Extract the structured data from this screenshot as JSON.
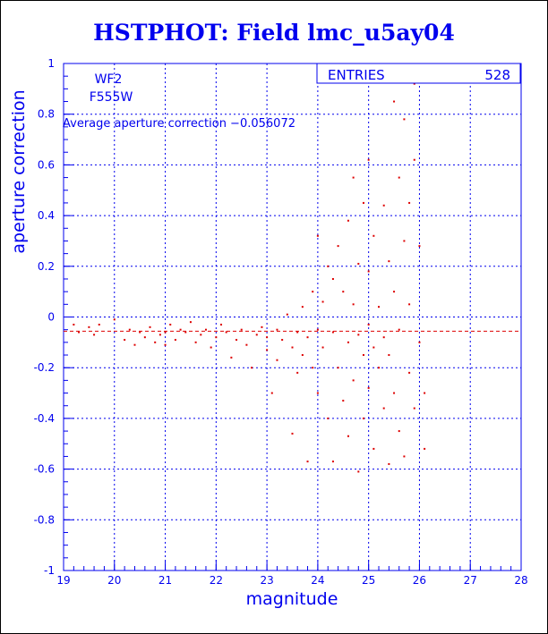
{
  "chart_data": {
    "type": "scatter",
    "title": "HSTPHOT: Field lmc_u5ay04",
    "xlabel": "magnitude",
    "ylabel": "aperture correction",
    "xlim": [
      19,
      28
    ],
    "ylim": [
      -1,
      1
    ],
    "xticks": [
      "19",
      "20",
      "21",
      "22",
      "23",
      "24",
      "25",
      "26",
      "27",
      "28"
    ],
    "yticks": [
      "-1",
      "-0.8",
      "-0.6",
      "-0.4",
      "-0.2",
      "0",
      "0.2",
      "0.4",
      "0.6",
      "0.8",
      "1"
    ],
    "grid": "dashed",
    "annotations": {
      "chip": "WF2",
      "filter": "F555W",
      "average_text": "Average aperture correction −0.056072"
    },
    "stats": {
      "entries_label": "ENTRIES",
      "entries_value": "528"
    },
    "average_line": -0.056,
    "point_color": "#dd0000",
    "axis_color": "#0000ee",
    "points": [
      [
        19.2,
        -0.03
      ],
      [
        19.3,
        -0.06
      ],
      [
        19.5,
        -0.04
      ],
      [
        19.6,
        -0.07
      ],
      [
        19.7,
        -0.03
      ],
      [
        20.0,
        -0.01
      ],
      [
        20.2,
        -0.09
      ],
      [
        20.3,
        -0.05
      ],
      [
        20.4,
        -0.11
      ],
      [
        20.5,
        -0.06
      ],
      [
        20.6,
        -0.08
      ],
      [
        20.7,
        -0.04
      ],
      [
        20.8,
        -0.1
      ],
      [
        20.9,
        -0.07
      ],
      [
        21.0,
        -0.06
      ],
      [
        21.0,
        -0.11
      ],
      [
        21.1,
        -0.03
      ],
      [
        21.2,
        -0.09
      ],
      [
        21.3,
        -0.05
      ],
      [
        21.4,
        -0.06
      ],
      [
        21.5,
        -0.02
      ],
      [
        21.6,
        -0.1
      ],
      [
        21.7,
        -0.07
      ],
      [
        21.8,
        -0.05
      ],
      [
        21.9,
        -0.12
      ],
      [
        22.0,
        -0.08
      ],
      [
        22.1,
        -0.03
      ],
      [
        22.2,
        -0.06
      ],
      [
        22.3,
        -0.16
      ],
      [
        22.4,
        -0.09
      ],
      [
        22.5,
        -0.05
      ],
      [
        22.6,
        -0.11
      ],
      [
        22.7,
        -0.2
      ],
      [
        22.8,
        -0.07
      ],
      [
        22.9,
        -0.04
      ],
      [
        23.0,
        -0.13
      ],
      [
        23.0,
        -0.08
      ],
      [
        23.1,
        -0.3
      ],
      [
        23.2,
        -0.05
      ],
      [
        23.2,
        -0.17
      ],
      [
        23.3,
        -0.09
      ],
      [
        23.4,
        0.01
      ],
      [
        23.5,
        -0.46
      ],
      [
        23.5,
        -0.12
      ],
      [
        23.6,
        -0.06
      ],
      [
        23.6,
        -0.22
      ],
      [
        23.7,
        0.04
      ],
      [
        23.7,
        -0.15
      ],
      [
        23.8,
        -0.57
      ],
      [
        23.8,
        -0.08
      ],
      [
        23.9,
        0.1
      ],
      [
        23.9,
        -0.2
      ],
      [
        24.0,
        0.32
      ],
      [
        24.0,
        -0.05
      ],
      [
        24.0,
        -0.3
      ],
      [
        24.1,
        0.06
      ],
      [
        24.1,
        -0.12
      ],
      [
        24.2,
        0.2
      ],
      [
        24.2,
        -0.4
      ],
      [
        24.3,
        0.15
      ],
      [
        24.3,
        -0.06
      ],
      [
        24.3,
        -0.57
      ],
      [
        24.4,
        0.28
      ],
      [
        24.4,
        -0.2
      ],
      [
        24.5,
        0.1
      ],
      [
        24.5,
        -0.33
      ],
      [
        24.6,
        0.38
      ],
      [
        24.6,
        -0.1
      ],
      [
        24.6,
        -0.47
      ],
      [
        24.7,
        0.55
      ],
      [
        24.7,
        0.05
      ],
      [
        24.7,
        -0.25
      ],
      [
        24.8,
        0.21
      ],
      [
        24.8,
        -0.07
      ],
      [
        24.8,
        -0.61
      ],
      [
        24.9,
        0.45
      ],
      [
        24.9,
        -0.15
      ],
      [
        24.9,
        -0.4
      ],
      [
        25.0,
        0.62
      ],
      [
        25.0,
        0.18
      ],
      [
        25.0,
        -0.03
      ],
      [
        25.0,
        -0.28
      ],
      [
        25.1,
        0.32
      ],
      [
        25.1,
        -0.12
      ],
      [
        25.1,
        -0.52
      ],
      [
        25.2,
        0.04
      ],
      [
        25.2,
        -0.2
      ],
      [
        25.3,
        0.44
      ],
      [
        25.3,
        -0.08
      ],
      [
        25.3,
        -0.36
      ],
      [
        25.4,
        0.22
      ],
      [
        25.4,
        -0.15
      ],
      [
        25.4,
        -0.58
      ],
      [
        25.5,
        0.85
      ],
      [
        25.5,
        0.1
      ],
      [
        25.5,
        -0.3
      ],
      [
        25.6,
        0.55
      ],
      [
        25.6,
        -0.05
      ],
      [
        25.6,
        -0.45
      ],
      [
        25.7,
        0.94
      ],
      [
        25.7,
        0.78
      ],
      [
        25.7,
        0.3
      ],
      [
        25.7,
        -0.55
      ],
      [
        25.8,
        0.45
      ],
      [
        25.8,
        0.05
      ],
      [
        25.8,
        -0.22
      ],
      [
        25.9,
        0.92
      ],
      [
        25.9,
        0.62
      ],
      [
        25.9,
        -0.36
      ],
      [
        26.0,
        0.28
      ],
      [
        26.0,
        -0.1
      ],
      [
        26.1,
        -0.52
      ],
      [
        26.1,
        -0.3
      ]
    ]
  }
}
